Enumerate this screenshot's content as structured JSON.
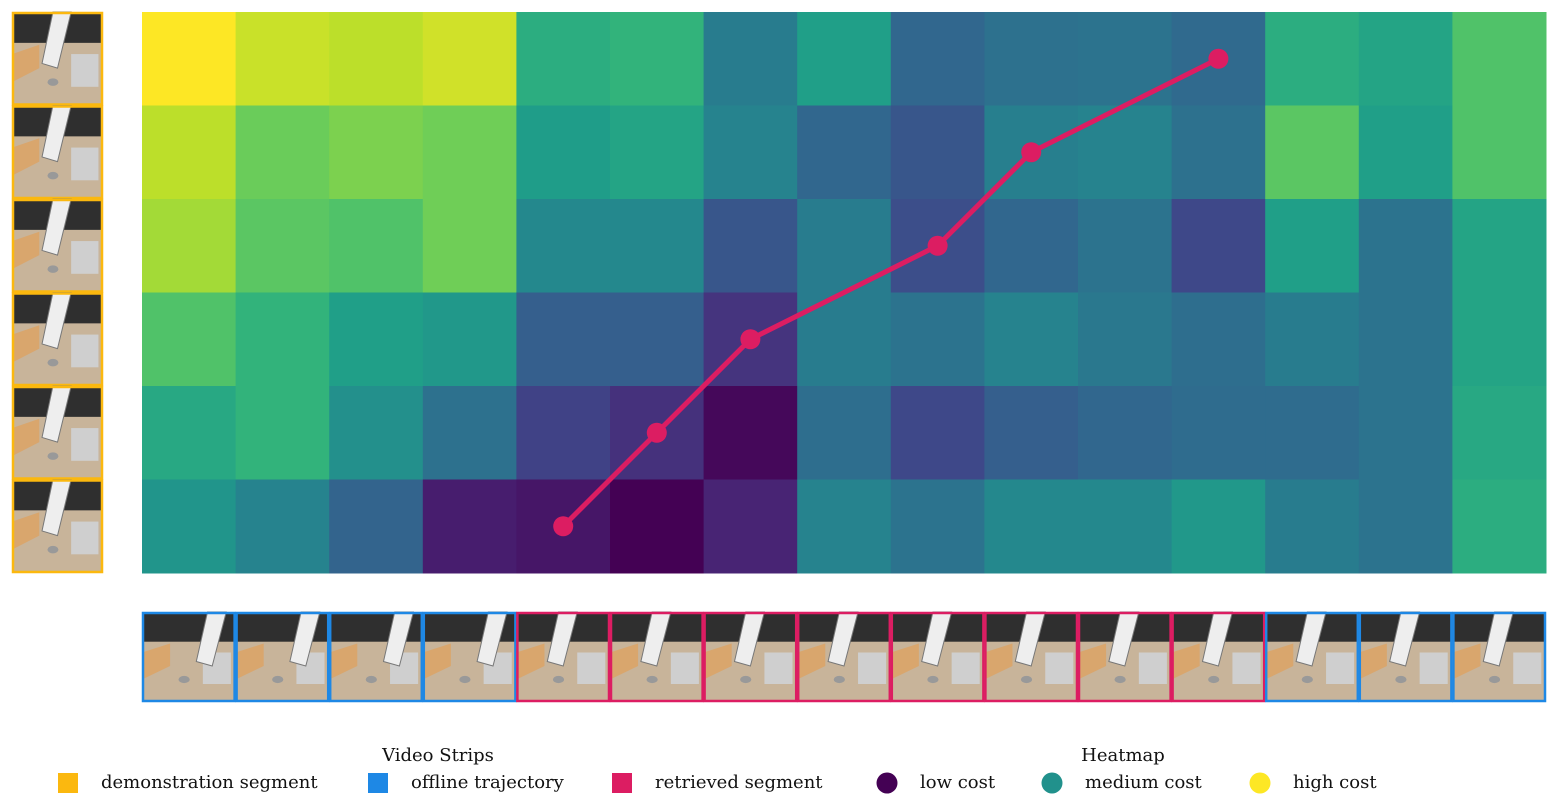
{
  "chart_data": {
    "type": "heatmap",
    "colormap": "viridis",
    "vlim": [
      0,
      1
    ],
    "values": [
      [
        1.0,
        0.92,
        0.9,
        0.93,
        0.62,
        0.65,
        0.42,
        0.56,
        0.33,
        0.37,
        0.38,
        0.34,
        0.62,
        0.58,
        0.72
      ],
      [
        0.9,
        0.77,
        0.8,
        0.78,
        0.55,
        0.58,
        0.45,
        0.33,
        0.27,
        0.43,
        0.45,
        0.37,
        0.74,
        0.56,
        0.72
      ],
      [
        0.86,
        0.74,
        0.72,
        0.78,
        0.47,
        0.47,
        0.27,
        0.42,
        0.24,
        0.33,
        0.38,
        0.22,
        0.56,
        0.38,
        0.58
      ],
      [
        0.72,
        0.65,
        0.56,
        0.53,
        0.3,
        0.3,
        0.15,
        0.42,
        0.38,
        0.45,
        0.4,
        0.36,
        0.42,
        0.38,
        0.58
      ],
      [
        0.6,
        0.65,
        0.5,
        0.37,
        0.2,
        0.14,
        0.02,
        0.36,
        0.22,
        0.3,
        0.33,
        0.35,
        0.35,
        0.38,
        0.6
      ],
      [
        0.52,
        0.45,
        0.32,
        0.08,
        0.06,
        0.0,
        0.1,
        0.45,
        0.38,
        0.47,
        0.47,
        0.53,
        0.42,
        0.38,
        0.62
      ]
    ],
    "path": {
      "color": "#dc1d62",
      "cols": [
        4,
        5,
        6,
        8,
        9,
        11
      ],
      "rows": [
        5,
        4,
        3,
        2,
        1,
        0
      ]
    },
    "left_strip": {
      "segment": 0
    },
    "bottom_strip": {
      "segment": [
        1,
        1,
        1,
        1,
        2,
        2,
        2,
        2,
        2,
        2,
        2,
        2,
        1,
        1,
        1
      ]
    },
    "legend": {
      "video_strips": {
        "title": "Video Strips",
        "items": [
          {
            "label": "demonstration segment",
            "color": "#fbb80f"
          },
          {
            "label": "offline trajectory",
            "color": "#1e88e5"
          },
          {
            "label": "retrieved segment",
            "color": "#dc1d62"
          }
        ]
      },
      "heatmap": {
        "title": "Heatmap",
        "items": [
          {
            "label": "low cost",
            "color": "#440154"
          },
          {
            "label": "medium cost",
            "color": "#21918c"
          },
          {
            "label": "high cost",
            "color": "#fde725"
          }
        ]
      }
    }
  }
}
